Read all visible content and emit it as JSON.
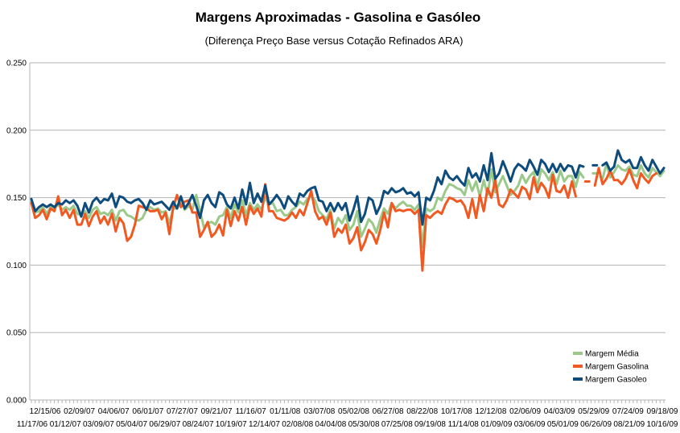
{
  "chart_data": {
    "type": "line",
    "title": "Margens Aproximadas - Gasolina e Gasóleo",
    "subtitle": "(Diferença Preço Base versus Cotação Refinados ARA)",
    "xlabel": "",
    "ylabel": "",
    "ylim": [
      0.0,
      0.25
    ],
    "yticks": [
      "0.000",
      "0.050",
      "0.100",
      "0.150",
      "0.200",
      "0.250"
    ],
    "grid": "horizontal",
    "legend_position": "bottom-right",
    "x_tick_labels_row1": [
      "12/15/06",
      "02/09/07",
      "04/06/07",
      "06/01/07",
      "07/27/07",
      "09/21/07",
      "11/16/07",
      "01/11/08",
      "03/07/08",
      "05/02/08",
      "06/27/08",
      "08/22/08",
      "10/17/08",
      "12/12/08",
      "02/06/09",
      "04/03/09",
      "05/29/09",
      "07/24/09",
      "09/18/09"
    ],
    "x_tick_labels_row2": [
      "11/17/06",
      "01/12/07",
      "03/09/07",
      "05/04/07",
      "06/29/07",
      "08/24/07",
      "10/19/07",
      "12/14/07",
      "02/08/08",
      "04/04/08",
      "05/30/08",
      "07/25/08",
      "09/19/08",
      "11/14/08",
      "01/09/09",
      "03/06/09",
      "05/01/09",
      "06/26/09",
      "08/21/09",
      "10/16/09"
    ],
    "series": [
      {
        "name": "Margem Média",
        "color": "#9bc98a",
        "values": [
          0.147,
          0.139,
          0.14,
          0.143,
          0.138,
          0.143,
          0.142,
          0.145,
          0.141,
          0.143,
          0.141,
          0.144,
          0.138,
          0.137,
          0.14,
          0.135,
          0.141,
          0.143,
          0.138,
          0.139,
          0.137,
          0.141,
          0.133,
          0.14,
          0.141,
          0.137,
          0.136,
          0.134,
          0.133,
          0.135,
          0.141,
          0.143,
          0.141,
          0.142,
          0.139,
          0.14,
          0.131,
          0.142,
          0.142,
          0.148,
          0.141,
          0.144,
          0.141,
          0.152,
          0.14,
          0.128,
          0.131,
          0.132,
          0.13,
          0.136,
          0.137,
          0.143,
          0.135,
          0.145,
          0.139,
          0.148,
          0.137,
          0.146,
          0.141,
          0.145,
          0.141,
          0.15,
          0.145,
          0.146,
          0.14,
          0.141,
          0.137,
          0.137,
          0.141,
          0.143,
          0.147,
          0.145,
          0.149,
          0.151,
          0.148,
          0.14,
          0.137,
          0.134,
          0.141,
          0.127,
          0.135,
          0.131,
          0.137,
          0.126,
          0.13,
          0.14,
          0.121,
          0.127,
          0.134,
          0.131,
          0.124,
          0.134,
          0.142,
          0.138,
          0.146,
          0.142,
          0.145,
          0.147,
          0.144,
          0.144,
          0.141,
          0.145,
          0.113,
          0.142,
          0.14,
          0.142,
          0.15,
          0.148,
          0.155,
          0.16,
          0.159,
          0.157,
          0.156,
          0.152,
          0.163,
          0.155,
          0.162,
          0.151,
          0.163,
          0.152,
          0.171,
          0.154,
          0.16,
          0.166,
          0.159,
          0.152,
          0.155,
          0.159,
          0.167,
          0.161,
          0.166,
          0.169,
          0.158,
          0.171,
          0.168,
          0.163,
          0.169,
          0.16,
          0.17,
          0.162,
          0.166,
          0.166,
          0.158,
          0.169,
          0.165,
          null,
          null,
          0.168,
          null,
          0.164,
          0.175,
          0.165,
          0.169,
          0.174,
          0.171,
          0.17,
          0.173,
          0.167,
          0.166,
          0.174,
          0.168,
          0.165,
          0.172,
          0.169,
          0.166,
          0.17
        ]
      },
      {
        "name": "Margem Gasolina",
        "color": "#f05a22",
        "values": [
          0.146,
          0.135,
          0.137,
          0.141,
          0.134,
          0.142,
          0.14,
          0.151,
          0.137,
          0.141,
          0.135,
          0.141,
          0.13,
          0.13,
          0.138,
          0.129,
          0.136,
          0.14,
          0.131,
          0.136,
          0.13,
          0.138,
          0.125,
          0.135,
          0.131,
          0.118,
          0.121,
          0.13,
          0.144,
          0.143,
          0.142,
          0.14,
          0.14,
          0.141,
          0.134,
          0.139,
          0.123,
          0.143,
          0.152,
          0.143,
          0.147,
          0.148,
          0.139,
          0.139,
          0.121,
          0.126,
          0.132,
          0.121,
          0.124,
          0.13,
          0.122,
          0.141,
          0.129,
          0.14,
          0.133,
          0.143,
          0.13,
          0.144,
          0.138,
          0.142,
          0.136,
          0.16,
          0.14,
          0.14,
          0.135,
          0.134,
          0.133,
          0.135,
          0.139,
          0.135,
          0.141,
          0.137,
          0.146,
          0.155,
          0.14,
          0.134,
          0.136,
          0.13,
          0.139,
          0.121,
          0.127,
          0.124,
          0.13,
          0.116,
          0.12,
          0.128,
          0.111,
          0.117,
          0.126,
          0.123,
          0.116,
          0.126,
          0.139,
          0.128,
          0.146,
          0.14,
          0.141,
          0.14,
          0.141,
          0.141,
          0.138,
          0.141,
          0.096,
          0.137,
          0.135,
          0.138,
          0.14,
          0.138,
          0.145,
          0.15,
          0.149,
          0.147,
          0.148,
          0.144,
          0.135,
          0.149,
          0.135,
          0.152,
          0.14,
          0.157,
          0.15,
          0.163,
          0.145,
          0.143,
          0.148,
          0.156,
          0.153,
          0.15,
          0.158,
          0.156,
          0.149,
          0.165,
          0.154,
          0.161,
          0.157,
          0.15,
          0.167,
          0.155,
          0.154,
          0.159,
          0.15,
          0.162,
          0.151,
          null,
          null,
          0.162,
          null,
          0.159,
          0.172,
          0.16,
          0.164,
          0.17,
          0.163,
          0.163,
          0.16,
          0.164,
          0.171,
          0.163,
          0.157,
          0.168,
          0.164,
          0.161,
          0.166,
          0.168
        ]
      },
      {
        "name": "Margem Gasoleo",
        "color": "#0e4c7d",
        "values": [
          0.149,
          0.14,
          0.143,
          0.145,
          0.143,
          0.145,
          0.143,
          0.146,
          0.145,
          0.148,
          0.146,
          0.148,
          0.144,
          0.136,
          0.146,
          0.139,
          0.147,
          0.15,
          0.146,
          0.149,
          0.148,
          0.153,
          0.143,
          0.151,
          0.15,
          0.147,
          0.146,
          0.148,
          0.149,
          0.146,
          0.141,
          0.148,
          0.145,
          0.146,
          0.147,
          0.144,
          0.141,
          0.147,
          0.142,
          0.151,
          0.142,
          0.146,
          0.152,
          0.144,
          0.135,
          0.148,
          0.152,
          0.146,
          0.143,
          0.154,
          0.152,
          0.145,
          0.142,
          0.15,
          0.142,
          0.156,
          0.145,
          0.161,
          0.146,
          0.153,
          0.147,
          0.159,
          0.145,
          0.148,
          0.152,
          0.148,
          0.142,
          0.151,
          0.147,
          0.144,
          0.153,
          0.151,
          0.155,
          0.157,
          0.158,
          0.148,
          0.147,
          0.14,
          0.146,
          0.14,
          0.146,
          0.141,
          0.146,
          0.133,
          0.141,
          0.151,
          0.132,
          0.138,
          0.15,
          0.148,
          0.138,
          0.144,
          0.155,
          0.153,
          0.157,
          0.154,
          0.155,
          0.157,
          0.153,
          0.154,
          0.151,
          0.154,
          0.13,
          0.15,
          0.148,
          0.155,
          0.165,
          0.16,
          0.17,
          0.165,
          0.163,
          0.166,
          0.162,
          0.159,
          0.172,
          0.165,
          0.168,
          0.162,
          0.174,
          0.163,
          0.183,
          0.164,
          0.168,
          0.177,
          0.17,
          0.162,
          0.171,
          0.175,
          0.173,
          0.17,
          0.178,
          0.173,
          0.167,
          0.178,
          0.175,
          0.169,
          0.175,
          0.169,
          0.175,
          0.17,
          0.174,
          0.173,
          0.165,
          0.174,
          0.173,
          null,
          null,
          0.174,
          null,
          0.174,
          0.176,
          0.17,
          0.173,
          0.185,
          0.178,
          0.176,
          0.178,
          0.172,
          0.172,
          0.18,
          0.174,
          0.17,
          0.178,
          0.173,
          0.168,
          0.172
        ]
      }
    ]
  }
}
